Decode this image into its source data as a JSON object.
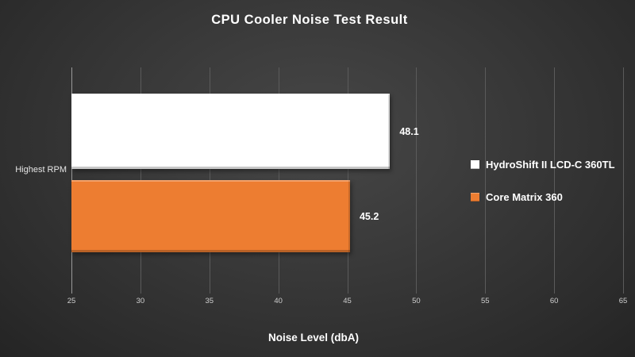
{
  "chart_data": {
    "type": "bar",
    "orientation": "horizontal",
    "title": "CPU Cooler Noise Test Result",
    "xlabel": "Noise Level (dbA)",
    "ylabel": "",
    "categories": [
      "Highest RPM"
    ],
    "series": [
      {
        "name": "HydroShift II LCD-C 360TL",
        "values": [
          48.1
        ],
        "color": "#ffffff"
      },
      {
        "name": "Core Matrix 360",
        "values": [
          45.2
        ],
        "color": "#ED7D31"
      }
    ],
    "xlim": [
      25,
      65
    ],
    "xticks": [
      25,
      30,
      35,
      40,
      45,
      50,
      55,
      60,
      65
    ],
    "grid": true,
    "legend_position": "right"
  },
  "colors": {
    "background": "#333333",
    "gridline": "#5b5b5b",
    "axis_line": "#9a9a9a",
    "text": "#ffffff",
    "tick_text": "#cfcfcf"
  }
}
